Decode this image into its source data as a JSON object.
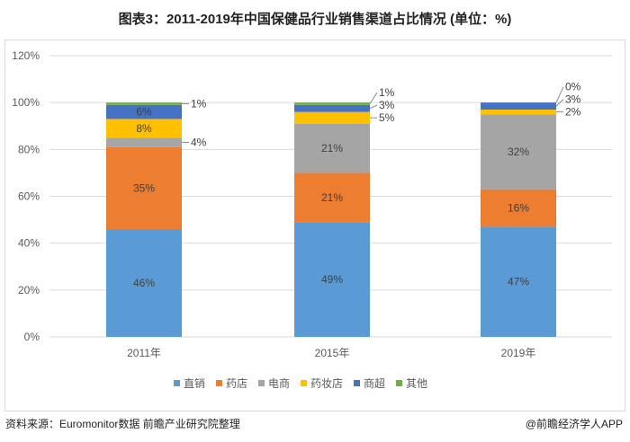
{
  "title": "图表3：2011-2019年中国保健品行业销售渠道占比情况 (单位：%)",
  "source": "资料来源：Euromonitor数据 前瞻产业研究院整理",
  "brand": "@前瞻经济学人APP",
  "chart_data": {
    "type": "bar",
    "stacked": true,
    "categories": [
      "2011年",
      "2015年",
      "2019年"
    ],
    "series": [
      {
        "name": "直销",
        "color": "#5b9bd5",
        "values": [
          46,
          49,
          47
        ]
      },
      {
        "name": "药店",
        "color": "#ed7d31",
        "values": [
          35,
          21,
          16
        ]
      },
      {
        "name": "电商",
        "color": "#a5a5a5",
        "values": [
          4,
          21,
          32
        ]
      },
      {
        "name": "药妆店",
        "color": "#ffc000",
        "values": [
          8,
          5,
          2
        ]
      },
      {
        "name": "商超",
        "color": "#4472c4",
        "values": [
          6,
          3,
          3
        ]
      },
      {
        "name": "其他",
        "color": "#70ad47",
        "values": [
          1,
          1,
          0
        ]
      }
    ],
    "yticks": [
      "0%",
      "20%",
      "40%",
      "60%",
      "80%",
      "100%",
      "120%"
    ],
    "ylim": [
      0,
      120
    ],
    "grid": true,
    "legend": "bottom"
  }
}
